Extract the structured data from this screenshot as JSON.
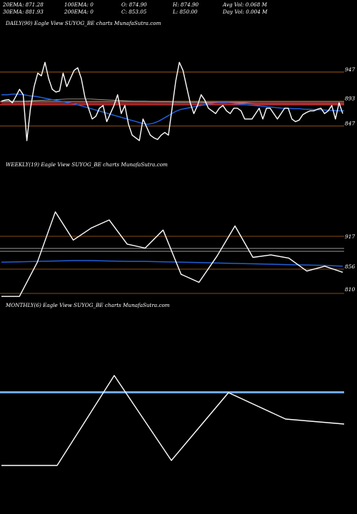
{
  "header": {
    "ema20": "20EMA: 871.28",
    "ema30": "30EMA: 881.93",
    "ema100": "100EMA: 0",
    "ema200": "200EMA: 0",
    "open": "O: 874.90",
    "close": "C: 853.05",
    "high": "H: 874.90",
    "low": "L: 850.00",
    "avg_vol": "Avg Vol: 0.068  M",
    "day_vol": "Day Vol: 0.004  M"
  },
  "colors": {
    "background": "#000000",
    "price": "#ffffff",
    "ema_blue": "#1f5fd8",
    "ema_red": "#ff3b3b",
    "ema_grey": "#9a9a9a",
    "level_line": "#b5651d",
    "monthly_band": "#6fa6ff"
  },
  "chart_data": [
    {
      "type": "line",
      "title": "DAILY(90) Eagle  View  SUYOG_BE charts MunafaSutra.com",
      "ylabels": [
        "947",
        "893",
        "847"
      ],
      "series": [
        {
          "values": [
            893,
            895,
            896,
            890,
            902,
            915,
            905,
            820,
            880,
            920,
            945,
            940,
            965,
            935,
            915,
            910,
            912,
            945,
            920,
            935,
            950,
            955,
            935,
            900,
            880,
            860,
            865,
            880,
            885,
            855,
            870,
            885,
            905,
            870,
            885,
            850,
            830,
            825,
            820,
            860,
            845,
            830,
            825,
            822,
            830,
            835,
            830,
            880,
            930,
            965,
            950,
            920,
            890,
            870,
            885,
            905,
            895,
            880,
            875,
            870,
            880,
            885,
            875,
            870,
            880,
            880,
            875,
            860,
            860,
            860,
            870,
            880,
            860,
            880,
            880,
            870,
            860,
            870,
            880,
            880,
            860,
            855,
            858,
            868,
            872,
            875,
            875,
            878,
            880,
            870,
            875,
            885,
            860,
            890,
            870
          ]
        },
        {
          "values": [
            905,
            905,
            906,
            906,
            905,
            903,
            902,
            900,
            898,
            896,
            894,
            892,
            890,
            888,
            885,
            882,
            879,
            876,
            873,
            870,
            867,
            864,
            861,
            858,
            855,
            852,
            850,
            852,
            856,
            862,
            868,
            874,
            878,
            880,
            882,
            884,
            886,
            888,
            889,
            890,
            890,
            889,
            888,
            887,
            886,
            885,
            884,
            883,
            882,
            881,
            880,
            880,
            879,
            879,
            878,
            878,
            877,
            877,
            876,
            876,
            875,
            875
          ]
        },
        {
          "values": [
            893,
            893,
            893,
            894,
            895,
            896,
            897,
            897,
            897,
            896,
            895,
            894,
            893,
            893,
            892,
            892,
            891,
            891,
            891,
            890,
            890,
            890,
            890,
            889,
            889,
            889,
            889,
            889,
            889,
            889,
            889,
            889
          ]
        },
        {
          "values": [
            889,
            889,
            889,
            889,
            889,
            889,
            889,
            889,
            889,
            889,
            889,
            889,
            889,
            889,
            889,
            889,
            889,
            889,
            889,
            889,
            889,
            889,
            889,
            889
          ]
        }
      ]
    },
    {
      "type": "line",
      "title": "WEEKLY(19) Eagle  View  SUYOG_BE charts MunafaSutra.com",
      "ylabels": [
        "917",
        "856",
        "810"
      ],
      "series": [
        {
          "values": [
            795,
            795,
            880,
            1005,
            935,
            965,
            985,
            925,
            915,
            960,
            850,
            830,
            895,
            970,
            892,
            898,
            890,
            858,
            870,
            855
          ]
        },
        {
          "values": [
            880,
            881,
            882,
            883,
            884,
            884,
            883,
            882,
            882,
            881,
            880,
            879,
            878,
            877,
            876,
            875,
            874,
            873,
            872,
            870
          ]
        }
      ]
    },
    {
      "type": "line",
      "title": "MONTHLY(6) Eagle  View  SUYOG_BE charts MunafaSutra.com",
      "ylabels": [],
      "series": [
        {
          "values": [
            705,
            705,
            980,
            760,
            965,
            855,
            850
          ]
        }
      ]
    }
  ]
}
